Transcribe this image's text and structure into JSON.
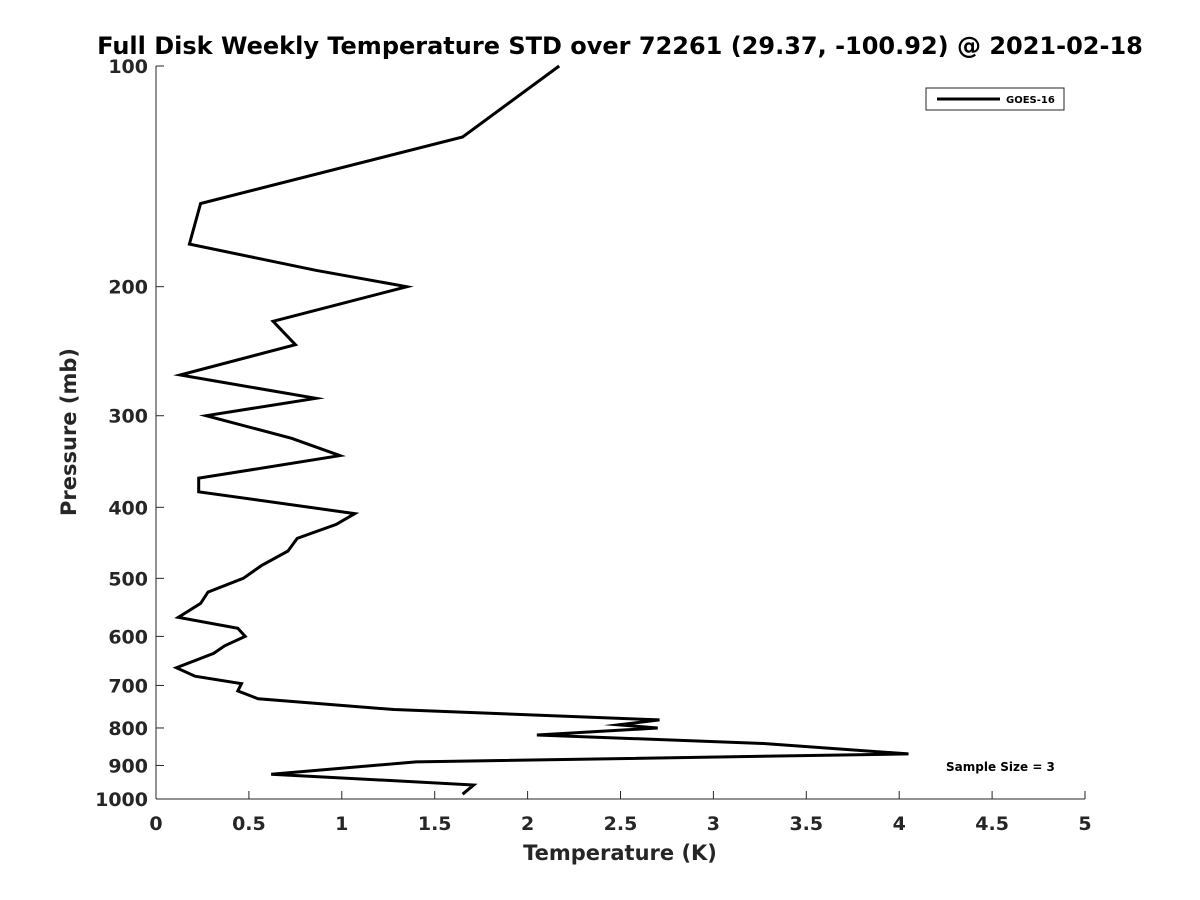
{
  "chart_data": {
    "type": "line",
    "title": "Full Disk Weekly Temperature STD over 72261 (29.37, -100.92) @ 2021-02-18",
    "xlabel": "Temperature (K)",
    "ylabel": "Pressure (mb)",
    "xlim": [
      0,
      5
    ],
    "ylim": [
      100,
      1000
    ],
    "yscale": "log",
    "y_reversed": true,
    "grid": false,
    "legend_position": "top-right",
    "x_ticks": [
      0,
      0.5,
      1,
      1.5,
      2,
      2.5,
      3,
      3.5,
      4,
      4.5,
      5
    ],
    "x_tick_labels": [
      "0",
      "0.5",
      "1",
      "1.5",
      "2",
      "2.5",
      "3",
      "3.5",
      "4",
      "4.5",
      "5"
    ],
    "y_ticks": [
      100,
      200,
      300,
      400,
      500,
      600,
      700,
      800,
      900,
      1000
    ],
    "y_tick_labels": [
      "100",
      "200",
      "300",
      "400",
      "500",
      "600",
      "700",
      "800",
      "900",
      "1000"
    ],
    "annotation": "Sample Size = 3",
    "series": [
      {
        "name": "GOES-16",
        "color": "#000000",
        "points": [
          [
            2.17,
            100
          ],
          [
            1.65,
            125
          ],
          [
            0.24,
            154
          ],
          [
            0.18,
            175
          ],
          [
            0.86,
            190
          ],
          [
            1.35,
            200
          ],
          [
            0.63,
            223
          ],
          [
            0.75,
            240
          ],
          [
            0.13,
            264
          ],
          [
            0.86,
            284
          ],
          [
            0.27,
            300
          ],
          [
            0.73,
            322
          ],
          [
            0.99,
            340
          ],
          [
            0.23,
            365
          ],
          [
            0.23,
            381
          ],
          [
            1.07,
            408
          ],
          [
            0.97,
            422
          ],
          [
            0.76,
            441
          ],
          [
            0.71,
            459
          ],
          [
            0.57,
            480
          ],
          [
            0.47,
            500
          ],
          [
            0.28,
            522
          ],
          [
            0.24,
            541
          ],
          [
            0.12,
            565
          ],
          [
            0.44,
            585
          ],
          [
            0.48,
            600
          ],
          [
            0.37,
            618
          ],
          [
            0.31,
            633
          ],
          [
            0.11,
            662
          ],
          [
            0.21,
            680
          ],
          [
            0.46,
            696
          ],
          [
            0.44,
            712
          ],
          [
            0.55,
            730
          ],
          [
            1.28,
            755
          ],
          [
            2.71,
            780
          ],
          [
            2.49,
            792
          ],
          [
            2.7,
            800
          ],
          [
            2.05,
            818
          ],
          [
            3.27,
            840
          ],
          [
            4.05,
            868
          ],
          [
            1.4,
            890
          ],
          [
            0.62,
            925
          ],
          [
            1.71,
            957
          ],
          [
            1.65,
            985
          ]
        ]
      }
    ]
  }
}
